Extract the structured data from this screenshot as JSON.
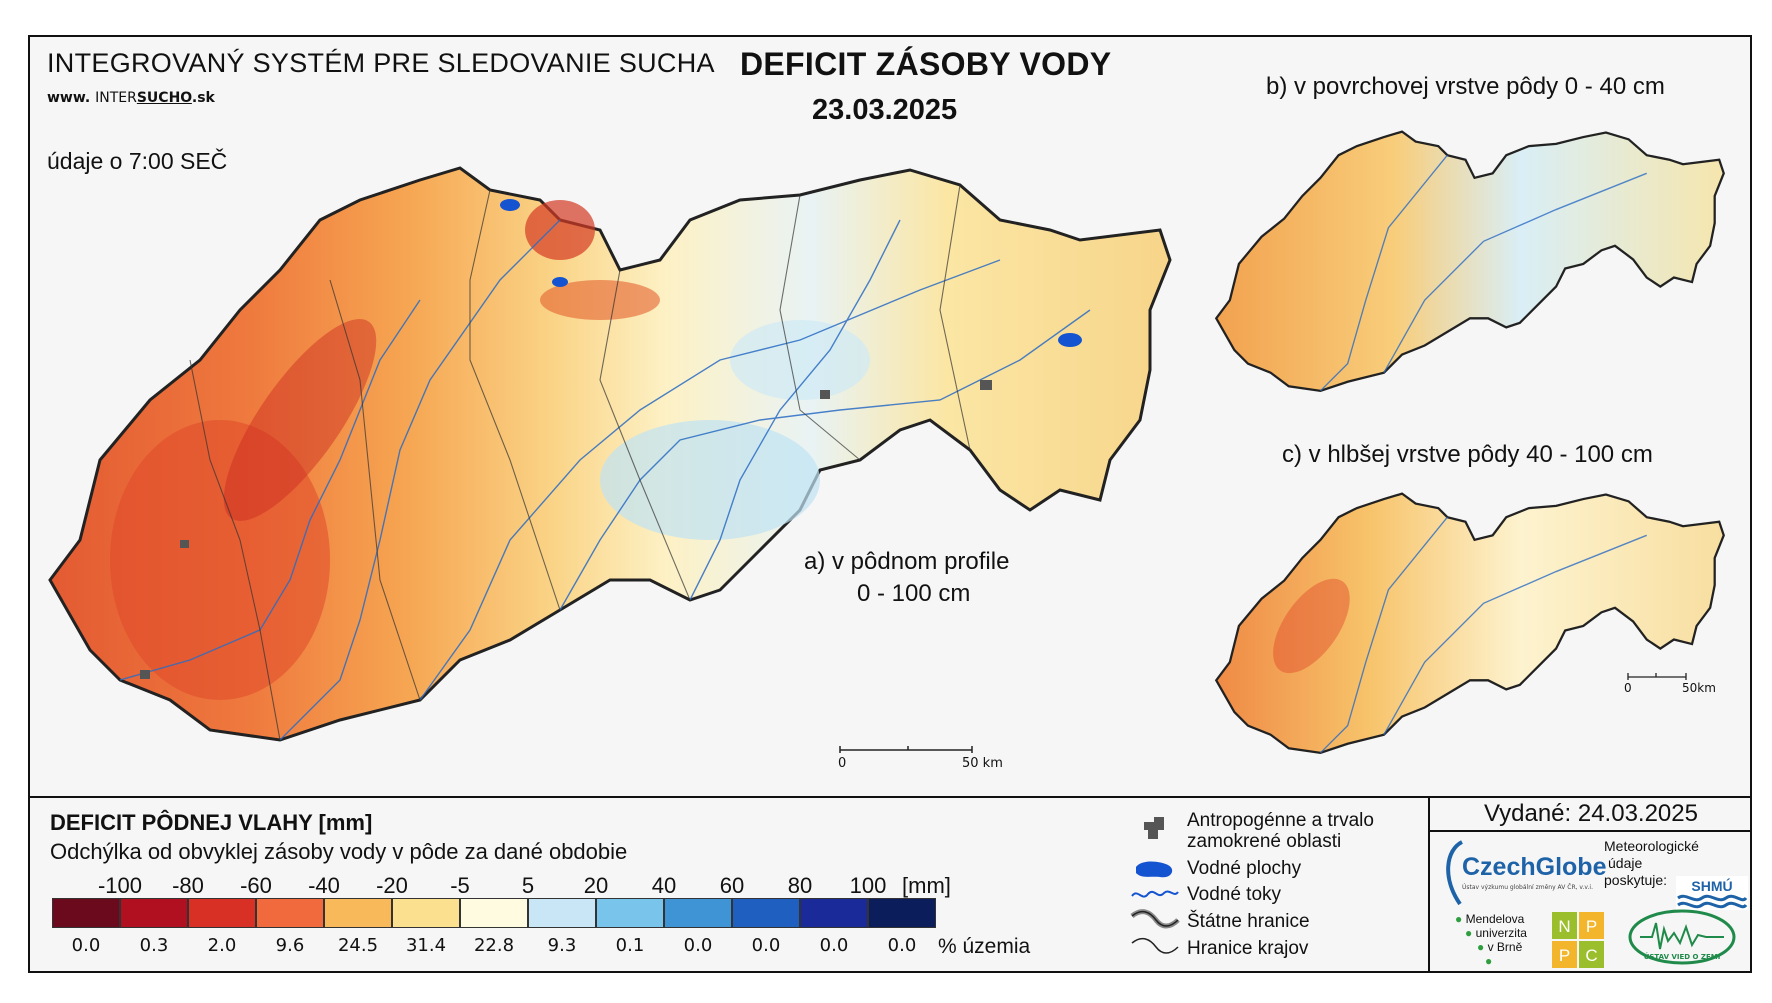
{
  "header": {
    "system_title": "INTEGROVANÝ SYSTÉM PRE SLEDOVANIE SUCHA",
    "website_prefix": "www.",
    "website_a": "INTER",
    "website_b": "SUCHO",
    "website_c": ".sk",
    "data_time": "údaje o 7:00 SEČ",
    "title": "DEFICIT ZÁSOBY VODY",
    "date": "23.03.2025"
  },
  "maps": {
    "a_label_1": "a) v pôdnom profile",
    "a_label_2": "0 - 100 cm",
    "b_label": "b) v povrchovej vrstve pôdy 0 - 40 cm",
    "c_label": "c) v hlbšej vrstve pôdy 40 - 100 cm",
    "scale_main": [
      "0",
      "50 km"
    ],
    "scale_small": [
      "0",
      "50km"
    ]
  },
  "legend": {
    "title": "DEFICIT PÔDNEJ VLAHY [mm]",
    "subtitle": "Odchýlka od obvyklej zásoby vody v pôde za dané obdobie",
    "ticks": [
      "-100",
      "-80",
      "-60",
      "-40",
      "-20",
      "-5",
      "5",
      "20",
      "40",
      "60",
      "80",
      "100"
    ],
    "unit": "[mm]",
    "colors": [
      "#6b0a1c",
      "#b0101f",
      "#d93025",
      "#f06a3d",
      "#f8b95a",
      "#fbe08f",
      "#fffbe0",
      "#c8e6f5",
      "#78c4ea",
      "#3f94d6",
      "#1f5fc0",
      "#1b2a99",
      "#0b1d5b"
    ],
    "percentages": [
      "0.0",
      "0.3",
      "2.0",
      "9.6",
      "24.5",
      "31.4",
      "22.8",
      "9.3",
      "0.1",
      "0.0",
      "0.0",
      "0.0",
      "0.0"
    ],
    "pct_unit": "% územia"
  },
  "map_legend": {
    "urban_1": "Antropogénne a trvalo",
    "urban_2": "zamokrené oblasti",
    "water_bodies": "Vodné plochy",
    "rivers": "Vodné toky",
    "state_border": "Štátne hranice",
    "region_border": "Hranice krajov"
  },
  "issued": "Vydané: 24.03.2025",
  "logos": {
    "czechglobe": "CzechGlobe",
    "czechglobe_sub": "Ústav výzkumu globální změny AV ČR, v.v.i.",
    "meteo_1": "Meteorologické",
    "meteo_2": "údaje",
    "meteo_3": "poskytuje:",
    "shmu": "SHMÚ",
    "mendel_1": "Mendelova",
    "mendel_2": "univerzita",
    "mendel_3": "v Brně",
    "nppc": [
      "N",
      "P",
      "P",
      "C"
    ],
    "ustav": "ÚSTAV VIED O ZEMI"
  }
}
